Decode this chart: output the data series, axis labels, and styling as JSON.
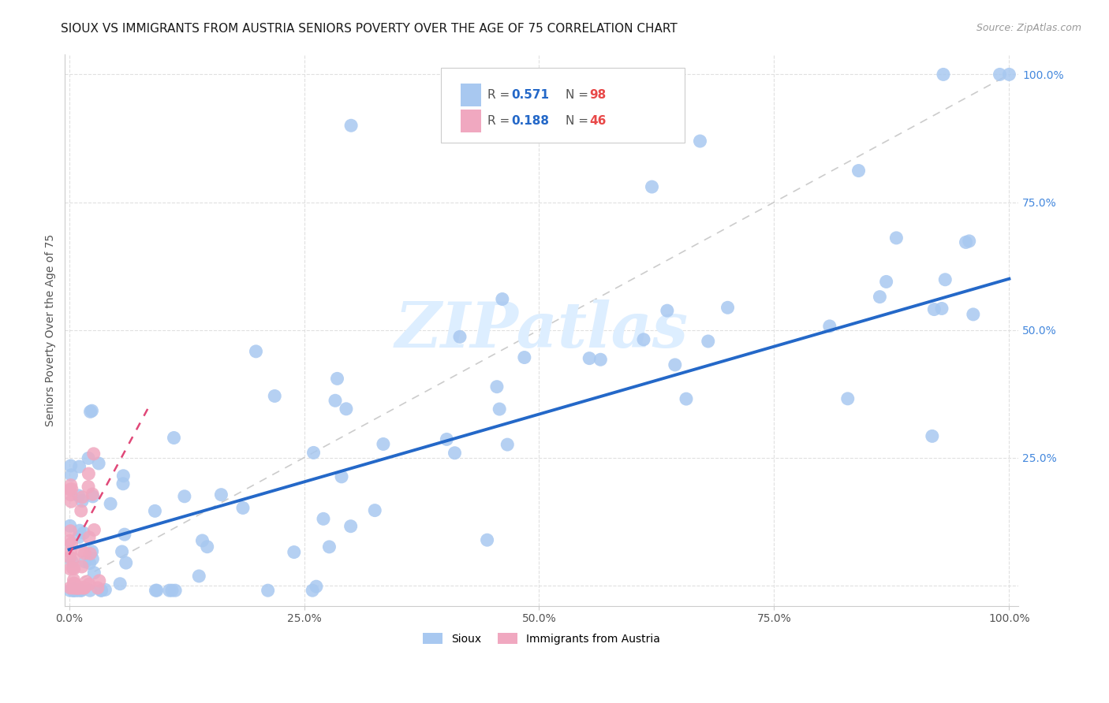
{
  "title": "SIOUX VS IMMIGRANTS FROM AUSTRIA SENIORS POVERTY OVER THE AGE OF 75 CORRELATION CHART",
  "source": "Source: ZipAtlas.com",
  "ylabel": "Seniors Poverty Over the Age of 75",
  "xlim": [
    -0.005,
    1.01
  ],
  "ylim": [
    -0.04,
    1.04
  ],
  "xtick_vals": [
    0.0,
    0.25,
    0.5,
    0.75,
    1.0
  ],
  "xtick_labels": [
    "0.0%",
    "25.0%",
    "50.0%",
    "75.0%",
    "100.0%"
  ],
  "ytick_vals": [
    0.0,
    0.25,
    0.5,
    0.75,
    1.0
  ],
  "ytick_labels_right": [
    "",
    "25.0%",
    "50.0%",
    "75.0%",
    "100.0%"
  ],
  "sioux_color": "#a8c8f0",
  "austria_color": "#f0a8c0",
  "sioux_line_color": "#2468c8",
  "austria_line_color": "#e04878",
  "diag_color": "#cccccc",
  "grid_color": "#e0e0e0",
  "background_color": "#ffffff",
  "watermark_text": "ZIPatlas",
  "watermark_color": "#ddeeff",
  "legend_label1": "Sioux",
  "legend_label2": "Immigrants from Austria",
  "sioux_R": 0.571,
  "sioux_N": 98,
  "austria_R": 0.188,
  "austria_N": 46,
  "title_fontsize": 11,
  "tick_fontsize": 10,
  "legend_info_fontsize": 11,
  "sioux_line_start_y": 0.07,
  "sioux_line_end_y": 0.6,
  "austria_line_start_y": 0.06,
  "austria_line_end_x": 0.085
}
